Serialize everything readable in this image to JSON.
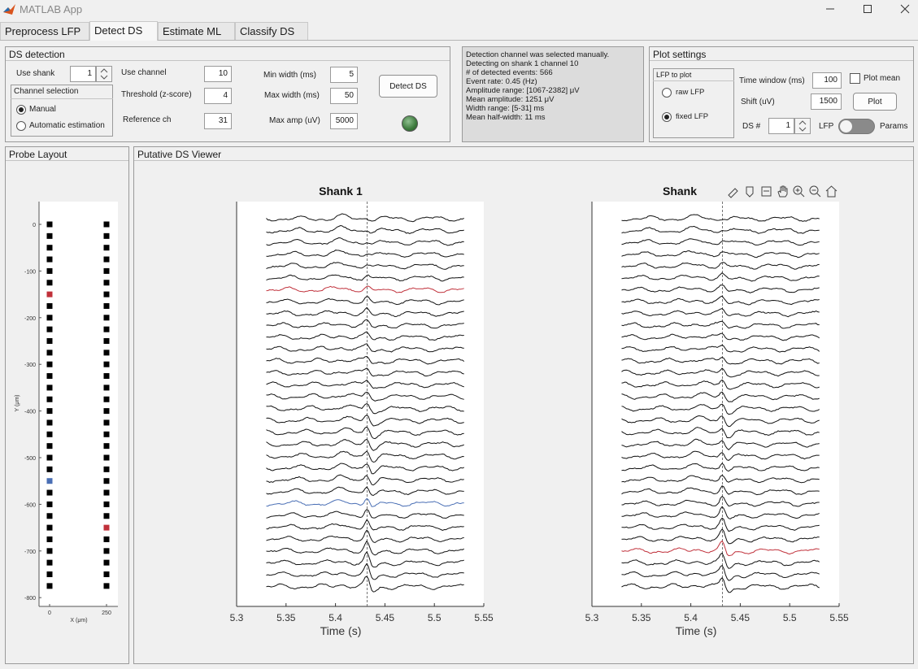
{
  "window": {
    "title": "MATLAB App"
  },
  "tabs": [
    {
      "label": "Preprocess LFP",
      "active": false
    },
    {
      "label": "Detect DS",
      "active": true
    },
    {
      "label": "Estimate ML",
      "active": false
    },
    {
      "label": "Classify DS",
      "active": false
    }
  ],
  "ds_detection": {
    "title": "DS detection",
    "use_shank_label": "Use shank",
    "use_shank_value": "1",
    "channel_selection": {
      "title": "Channel selection",
      "options": [
        "Manual",
        "Automatic estimation"
      ],
      "selected": "Manual"
    },
    "use_channel_label": "Use channel",
    "use_channel_value": "10",
    "threshold_label": "Threshold (z-score)",
    "threshold_value": "4",
    "reference_label": "Reference ch",
    "reference_value": "31",
    "min_width_label": "Min width (ms)",
    "min_width_value": "5",
    "max_width_label": "Max width (ms)",
    "max_width_value": "50",
    "max_amp_label": "Max amp (uV)",
    "max_amp_value": "5000",
    "detect_button": "Detect DS",
    "lamp_color": "#3c7a3c"
  },
  "status_lines": [
    "Detection channel was selected manually.",
    "Detecting on shank 1 channel 10",
    "# of detected events: 566",
    "Event rate: 0.45 (Hz)",
    "Amplitude range: [1067-2382] μV",
    "Mean amplitude: 1251 μV",
    "Width range: [5-31] ms",
    "Mean half-width: 11 ms"
  ],
  "plot_settings": {
    "title": "Plot settings",
    "lfp_group_title": "LFP to plot",
    "lfp_options": [
      "raw LFP",
      "fixed LFP"
    ],
    "lfp_selected": "fixed LFP",
    "time_window_label": "Time window (ms)",
    "time_window_value": "100",
    "shift_label": "Shift (uV)",
    "shift_value": "1500",
    "plot_mean_label": "Plot mean",
    "plot_button": "Plot",
    "ds_num_label": "DS #",
    "ds_num_value": "1",
    "toggle_left": "LFP",
    "toggle_right": "Params"
  },
  "probe_layout": {
    "title": "Probe Layout",
    "ylabel": "Y (μm)",
    "xlabel": "X (μm)",
    "yticks": [
      "0",
      "-100",
      "-200",
      "-300",
      "-400",
      "-500",
      "-600",
      "-700",
      "-800"
    ],
    "xticks": [
      "0",
      "250"
    ],
    "channels_per_shank": 32,
    "spacing_um": 25,
    "x_positions_um": [
      0,
      250
    ],
    "highlight": [
      {
        "shank": 1,
        "y_um": -150,
        "color": "#c0303a"
      },
      {
        "shank": 1,
        "y_um": -550,
        "color": "#4a6fb5"
      },
      {
        "shank": 2,
        "y_um": -650,
        "color": "#c0303a"
      }
    ]
  },
  "viewer": {
    "title": "Putative DS Viewer",
    "xtick_labels": [
      "5.3",
      "5.35",
      "5.4",
      "5.45",
      "5.5",
      "5.55"
    ],
    "xlabel": "Time (s)",
    "event_time": 5.432,
    "shanks": [
      {
        "title": "Shank 1",
        "n_traces": 32,
        "highlight": [
          {
            "index": 6,
            "color": "#c0303a"
          },
          {
            "index": 24,
            "color": "#4a6fb5"
          }
        ]
      },
      {
        "title": "Shank",
        "n_traces": 32,
        "highlight": [
          {
            "index": 28,
            "color": "#c0303a"
          }
        ]
      }
    ],
    "toolbar_icons": [
      "brush-icon",
      "data-tip-icon",
      "legend-icon",
      "pan-icon",
      "zoom-in-icon",
      "zoom-out-icon",
      "home-icon"
    ]
  }
}
